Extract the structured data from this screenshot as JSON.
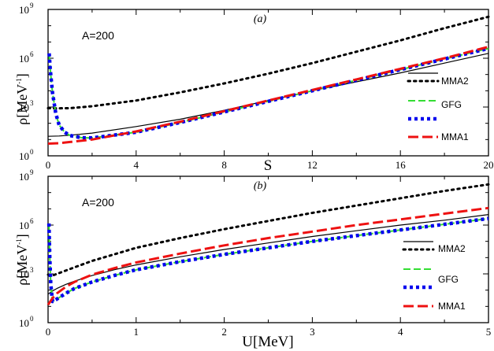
{
  "chart_data": [
    {
      "type": "line",
      "panel_tag": "(a)",
      "annotation": "A=200",
      "xlabel": "S",
      "ylabel": "ρ[MeV⁻¹]",
      "ylabel_base": "ρ[MeV",
      "ylabel_sup": "-1",
      "ylabel_close": "]",
      "xlim": [
        0,
        20
      ],
      "ylim_log10": [
        0,
        9
      ],
      "x_ticks": [
        {
          "v": 0,
          "label": "0"
        },
        {
          "v": 4,
          "label": "4"
        },
        {
          "v": 8,
          "label": "8"
        },
        {
          "v": 12,
          "label": "12"
        },
        {
          "v": 16,
          "label": "16"
        },
        {
          "v": 20,
          "label": "20"
        }
      ],
      "y_ticks": [
        {
          "v": 0,
          "base": "10",
          "exp": "0"
        },
        {
          "v": 3,
          "base": "10",
          "exp": "3"
        },
        {
          "v": 6,
          "base": "10",
          "exp": "6"
        },
        {
          "v": 9,
          "base": "10",
          "exp": "9"
        }
      ],
      "legend": [
        "MMA2",
        "GFG",
        "MMA1"
      ],
      "series": [
        {
          "name": "MMA2",
          "style": "dotted-black",
          "x": [
            0,
            0.3,
            1,
            2,
            4,
            6,
            8,
            10,
            12,
            14,
            16,
            18,
            20
          ],
          "log10y": [
            2.93,
            2.92,
            2.93,
            3.05,
            3.4,
            3.9,
            4.45,
            5.05,
            5.7,
            6.4,
            7.1,
            7.85,
            8.55
          ]
        },
        {
          "name": "thin",
          "style": "solid-black",
          "x": [
            0,
            0.5,
            1,
            2,
            4,
            6,
            8,
            10,
            12,
            14,
            16,
            18,
            20
          ],
          "log10y": [
            1.2,
            1.22,
            1.27,
            1.4,
            1.8,
            2.25,
            2.8,
            3.4,
            4.0,
            4.55,
            5.1,
            5.7,
            6.3
          ]
        },
        {
          "name": "GFG",
          "style": "dashed-green",
          "x": [
            0.05,
            0.1,
            0.2,
            0.35,
            0.5,
            0.75,
            1,
            1.5,
            2,
            4,
            6,
            8,
            10,
            12,
            14,
            16,
            18,
            20
          ],
          "log10y": [
            6.2,
            5.3,
            3.9,
            2.6,
            1.9,
            1.45,
            1.25,
            1.12,
            1.1,
            1.45,
            2.05,
            2.7,
            3.35,
            4.0,
            4.65,
            5.3,
            5.95,
            6.6
          ]
        },
        {
          "name": "MMA1-dots",
          "style": "dotted-blue",
          "x": [
            0.05,
            0.1,
            0.2,
            0.35,
            0.5,
            0.75,
            1,
            1.5,
            2,
            4,
            6,
            8,
            10,
            12,
            14,
            16,
            18,
            20
          ],
          "log10y": [
            6.3,
            5.3,
            3.9,
            2.6,
            1.9,
            1.45,
            1.25,
            1.12,
            1.1,
            1.45,
            2.05,
            2.7,
            3.35,
            4.0,
            4.65,
            5.3,
            5.95,
            6.6
          ]
        },
        {
          "name": "MMA1",
          "style": "dashed-red",
          "x": [
            0,
            0.5,
            1,
            2,
            4,
            6,
            8,
            10,
            12,
            14,
            16,
            18,
            20
          ],
          "log10y": [
            0.75,
            0.78,
            0.85,
            1.0,
            1.5,
            2.1,
            2.75,
            3.4,
            4.05,
            4.7,
            5.35,
            6.0,
            6.7
          ]
        }
      ]
    },
    {
      "type": "line",
      "panel_tag": "(b)",
      "annotation": "A=200",
      "xlabel": "U[MeV]",
      "ylabel": "ρ[MeV⁻¹]",
      "ylabel_base": "ρ[MeV",
      "ylabel_sup": "-1",
      "ylabel_close": "]",
      "xlim": [
        0,
        5
      ],
      "ylim_log10": [
        0,
        9
      ],
      "x_ticks": [
        {
          "v": 0,
          "label": "0"
        },
        {
          "v": 1,
          "label": "1"
        },
        {
          "v": 2,
          "label": "2"
        },
        {
          "v": 3,
          "label": "3"
        },
        {
          "v": 4,
          "label": "4"
        },
        {
          "v": 5,
          "label": "5"
        }
      ],
      "y_ticks": [
        {
          "v": 0,
          "base": "10",
          "exp": "0"
        },
        {
          "v": 3,
          "base": "10",
          "exp": "3"
        },
        {
          "v": 6,
          "base": "10",
          "exp": "6"
        },
        {
          "v": 9,
          "base": "10",
          "exp": "9"
        }
      ],
      "legend": [
        "MMA2",
        "GFG",
        "MMA1"
      ],
      "series": [
        {
          "name": "MMA2",
          "style": "dotted-black",
          "x": [
            0,
            0.05,
            0.1,
            0.3,
            0.5,
            1,
            1.5,
            2,
            2.5,
            3,
            3.5,
            4,
            4.5,
            5
          ],
          "log10y": [
            2.95,
            2.9,
            3.0,
            3.4,
            3.8,
            4.6,
            5.2,
            5.75,
            6.25,
            6.75,
            7.2,
            7.65,
            8.1,
            8.5
          ]
        },
        {
          "name": "thin",
          "style": "solid-black",
          "x": [
            0,
            0.05,
            0.1,
            0.2,
            0.3,
            0.5,
            0.75,
            1,
            1.5,
            2,
            2.5,
            3,
            3.5,
            4,
            4.5,
            5
          ],
          "log10y": [
            1.75,
            1.95,
            2.1,
            2.35,
            2.55,
            2.9,
            3.25,
            3.55,
            4.05,
            4.5,
            4.9,
            5.3,
            5.65,
            6.0,
            6.3,
            6.65
          ]
        },
        {
          "name": "GFG",
          "style": "dashed-green",
          "x": [
            0.01,
            0.02,
            0.03,
            0.05,
            0.1,
            0.2,
            0.3,
            0.5,
            0.75,
            1,
            1.5,
            2,
            2.5,
            3,
            3.5,
            4,
            4.5,
            5
          ],
          "log10y": [
            6.0,
            4.0,
            2.4,
            1.3,
            1.45,
            1.8,
            2.1,
            2.5,
            2.9,
            3.25,
            3.75,
            4.2,
            4.6,
            5.0,
            5.35,
            5.7,
            6.05,
            6.4
          ]
        },
        {
          "name": "MMA1-dots",
          "style": "dotted-blue",
          "x": [
            0.01,
            0.02,
            0.03,
            0.05,
            0.1,
            0.2,
            0.3,
            0.5,
            0.75,
            1,
            1.5,
            2,
            2.5,
            3,
            3.5,
            4,
            4.5,
            5
          ],
          "log10y": [
            6.1,
            4.0,
            2.4,
            1.3,
            1.45,
            1.8,
            2.1,
            2.5,
            2.9,
            3.25,
            3.75,
            4.2,
            4.6,
            5.0,
            5.35,
            5.7,
            6.05,
            6.4
          ]
        },
        {
          "name": "MMA1",
          "style": "dashed-red",
          "x": [
            0,
            0.05,
            0.1,
            0.2,
            0.3,
            0.5,
            0.75,
            1,
            1.5,
            2,
            2.5,
            3,
            3.5,
            4,
            4.5,
            5
          ],
          "log10y": [
            1.1,
            1.5,
            1.8,
            2.2,
            2.5,
            2.95,
            3.35,
            3.7,
            4.25,
            4.75,
            5.2,
            5.6,
            6.0,
            6.35,
            6.7,
            7.05
          ]
        }
      ]
    }
  ],
  "colors": {
    "mma2": "#000000",
    "thin": "#000000",
    "gfg": "#33dd33",
    "dots": "#0000ee",
    "mma1": "#ee1111"
  }
}
